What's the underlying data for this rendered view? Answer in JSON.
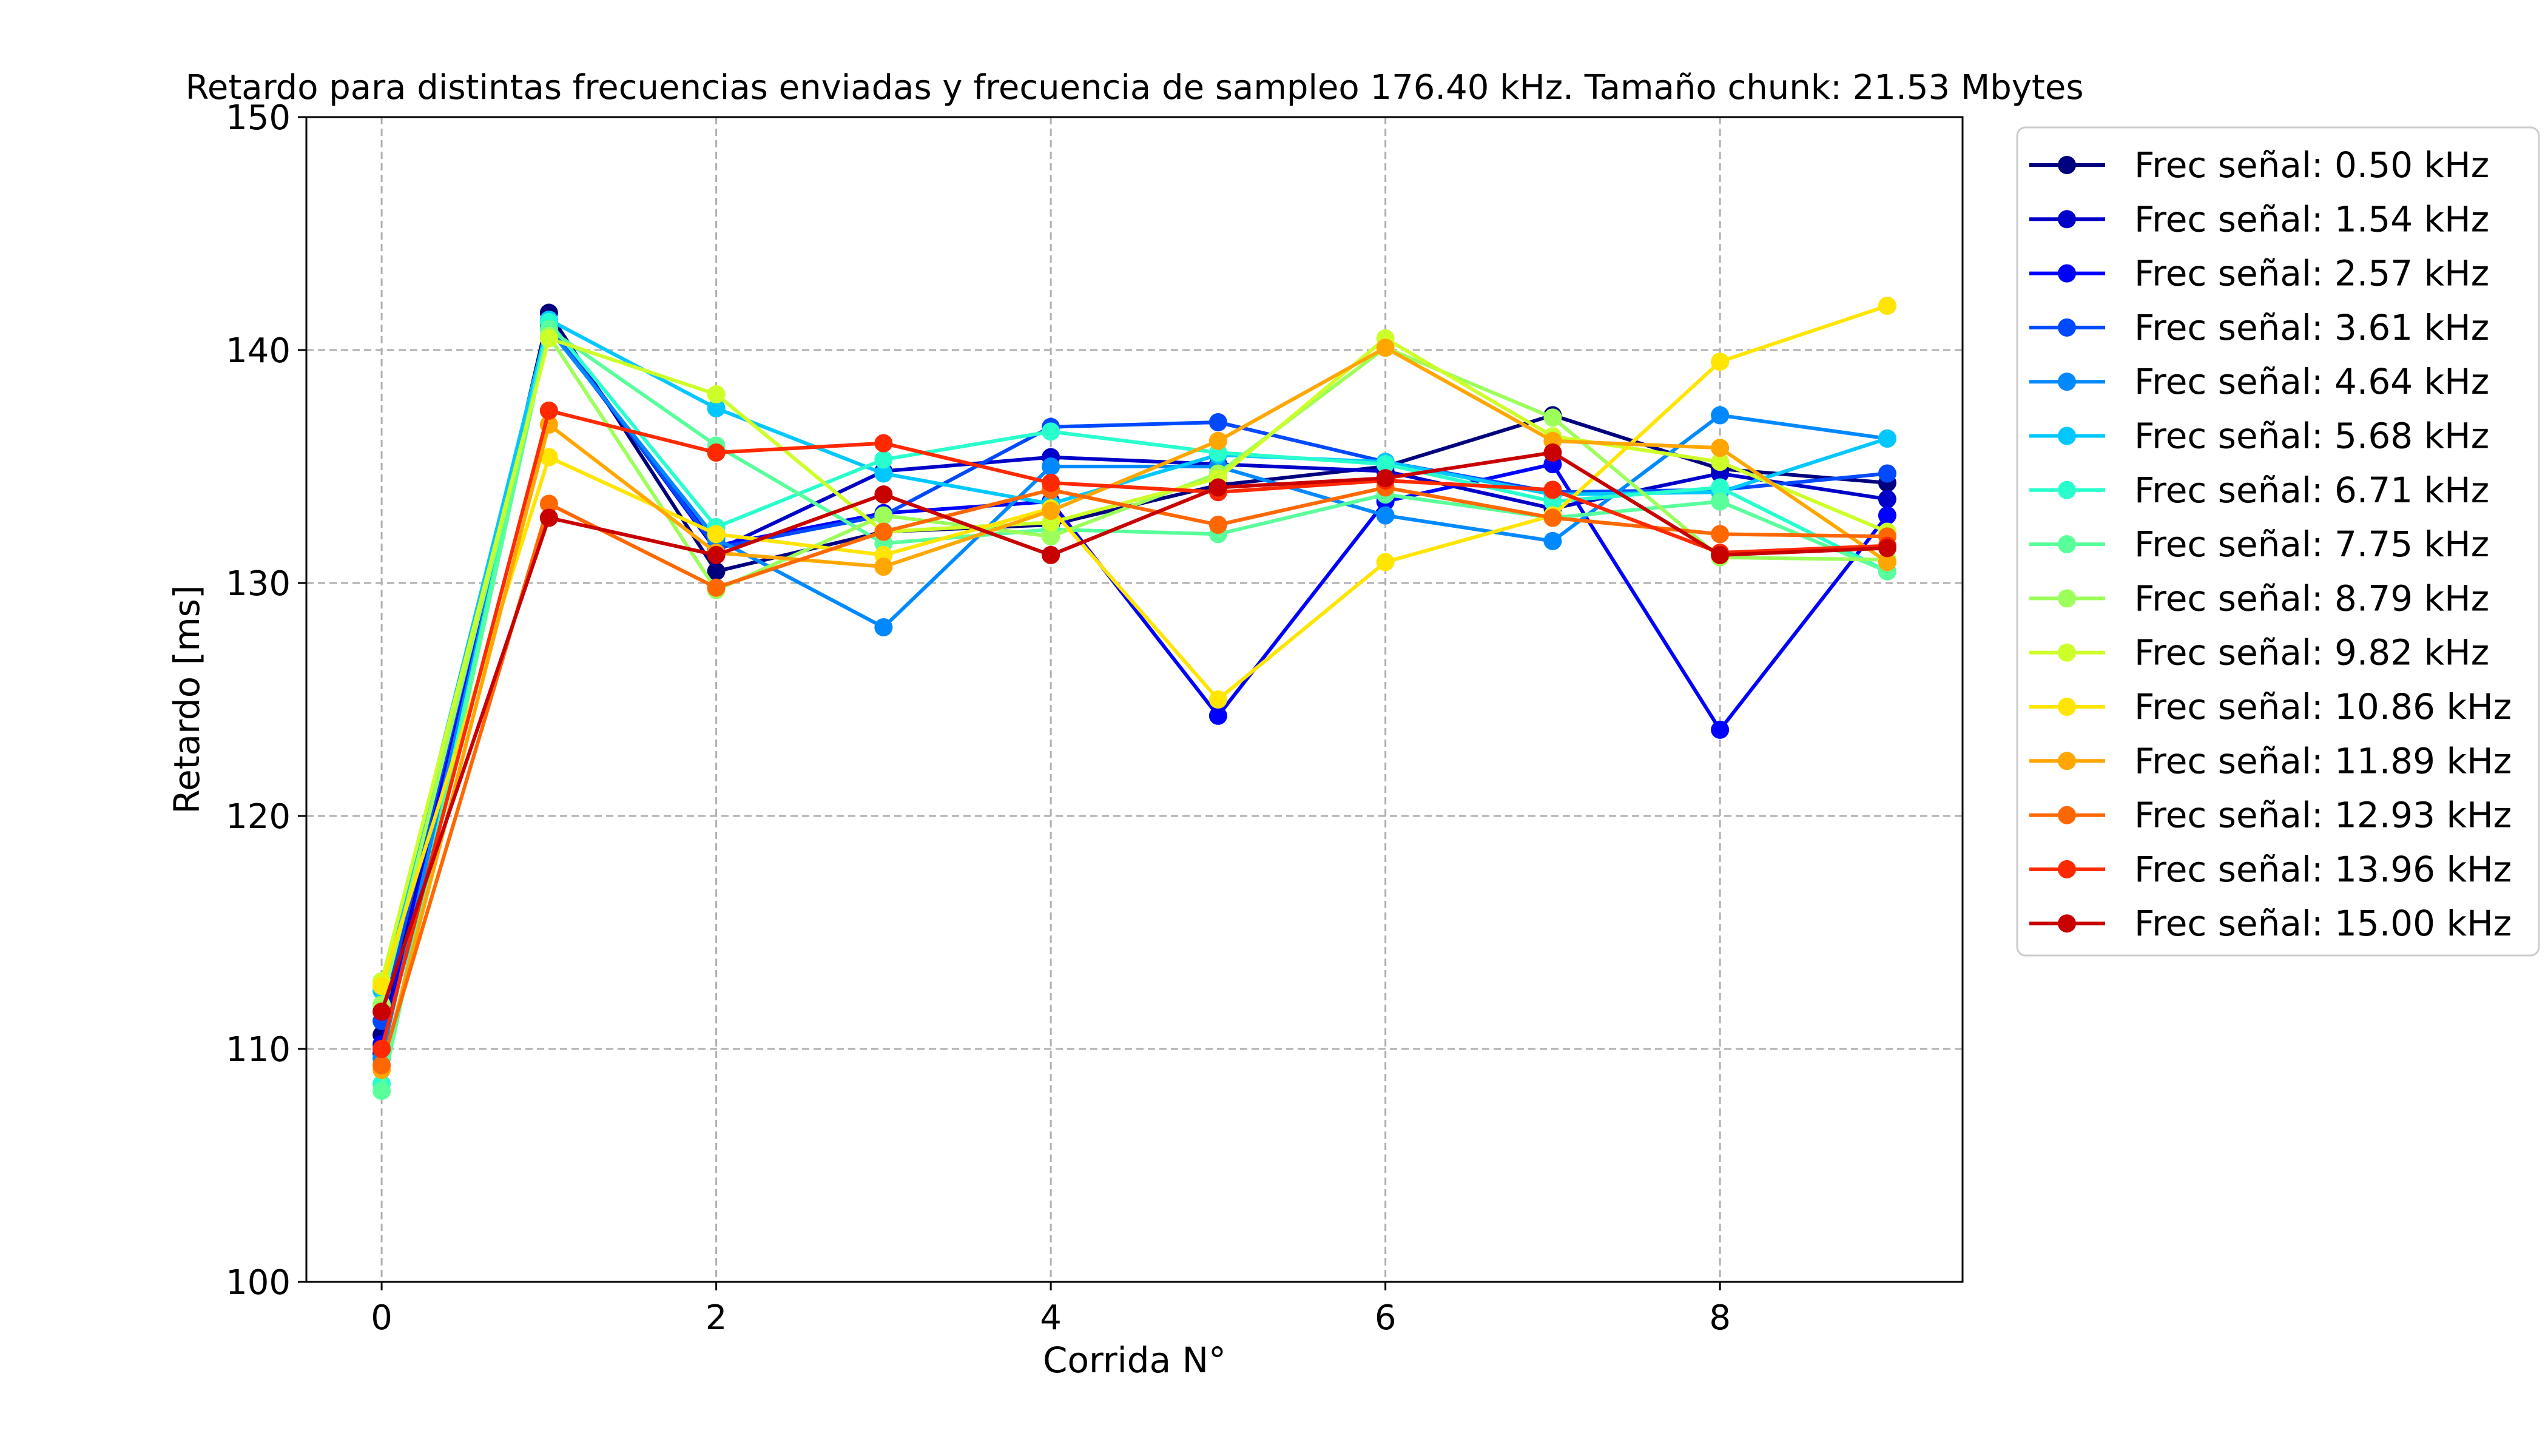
{
  "chart_data": {
    "type": "line",
    "title": "Retardo para distintas frecuencias enviadas y frecuencia de sampleo 176.40 kHz. Tamaño chunk:  21.53 Mbytes",
    "xlabel": "Corrida N°",
    "ylabel": "Retardo [ms]",
    "xlim": [
      -0.45,
      9.45
    ],
    "ylim": [
      100,
      150
    ],
    "xticks": [
      0,
      2,
      4,
      6,
      8
    ],
    "yticks": [
      100,
      110,
      120,
      130,
      140,
      150
    ],
    "grid": true,
    "legend_position": "outside right",
    "x": [
      0,
      1,
      2,
      3,
      4,
      5,
      6,
      7,
      8,
      9
    ],
    "series": [
      {
        "name": "Frec señal:  0.50 kHz",
        "color": "#00007f",
        "values": [
          110.6,
          141.6,
          130.5,
          132.2,
          132.5,
          134.2,
          135.0,
          137.2,
          134.9,
          134.3
        ]
      },
      {
        "name": "Frec señal:  1.54 kHz",
        "color": "#0000c8",
        "values": [
          109.8,
          141.2,
          131.4,
          134.8,
          135.4,
          135.1,
          134.8,
          133.2,
          134.7,
          133.6
        ]
      },
      {
        "name": "Frec señal:  2.57 kHz",
        "color": "#0000ff",
        "values": [
          110.2,
          141.0,
          131.6,
          133.0,
          133.5,
          124.3,
          133.5,
          135.1,
          123.7,
          132.9
        ]
      },
      {
        "name": "Frec señal:  3.61 kHz",
        "color": "#0049ff",
        "values": [
          111.2,
          141.1,
          131.5,
          132.9,
          136.7,
          136.9,
          135.2,
          133.9,
          134.0,
          134.7
        ]
      },
      {
        "name": "Frec señal:  4.64 kHz",
        "color": "#0089ff",
        "values": [
          109.6,
          140.9,
          131.9,
          128.1,
          135.0,
          135.0,
          132.9,
          131.8,
          137.2,
          136.2
        ]
      },
      {
        "name": "Frec señal:  5.68 kHz",
        "color": "#00c8ff",
        "values": [
          112.5,
          141.3,
          137.5,
          134.7,
          133.4,
          135.5,
          135.2,
          133.8,
          133.9,
          136.2
        ]
      },
      {
        "name": "Frec señal:  6.71 kHz",
        "color": "#29ffcd",
        "values": [
          108.5,
          141.2,
          132.4,
          135.3,
          136.5,
          135.6,
          135.1,
          133.5,
          134.1,
          130.5
        ]
      },
      {
        "name": "Frec señal:  7.75 kHz",
        "color": "#5aff9c",
        "values": [
          108.2,
          140.9,
          135.9,
          131.7,
          132.3,
          132.1,
          133.8,
          132.8,
          133.5,
          130.5
        ]
      },
      {
        "name": "Frec señal:  8.79 kHz",
        "color": "#9cff5a",
        "values": [
          111.9,
          140.6,
          129.7,
          132.9,
          132.0,
          134.7,
          140.1,
          137.1,
          131.1,
          131.0
        ]
      },
      {
        "name": "Frec señal:  9.82 kHz",
        "color": "#cdff29",
        "values": [
          112.9,
          140.5,
          138.1,
          132.2,
          132.6,
          134.5,
          140.5,
          136.3,
          135.2,
          132.2
        ]
      },
      {
        "name": "Frec señal: 10.86 kHz",
        "color": "#ffe500",
        "values": [
          112.7,
          135.4,
          132.1,
          131.2,
          133.2,
          125.0,
          130.9,
          132.9,
          139.5,
          141.9
        ]
      },
      {
        "name": "Frec señal: 11.89 kHz",
        "color": "#ffa700",
        "values": [
          109.1,
          136.8,
          131.3,
          130.7,
          133.1,
          136.1,
          140.1,
          136.1,
          135.8,
          130.9
        ]
      },
      {
        "name": "Frec señal: 12.93 kHz",
        "color": "#ff6800",
        "values": [
          109.3,
          133.4,
          129.8,
          132.2,
          134.0,
          132.5,
          134.1,
          132.8,
          132.1,
          132.0
        ]
      },
      {
        "name": "Frec señal: 13.96 kHz",
        "color": "#ff2900",
        "values": [
          110.0,
          137.4,
          135.6,
          136.0,
          134.3,
          133.9,
          134.4,
          134.0,
          131.3,
          131.6
        ]
      },
      {
        "name": "Frec señal: 15.00 kHz",
        "color": "#c80000",
        "values": [
          111.6,
          132.8,
          131.2,
          133.8,
          131.2,
          134.1,
          134.5,
          135.6,
          131.2,
          131.5
        ]
      }
    ]
  }
}
